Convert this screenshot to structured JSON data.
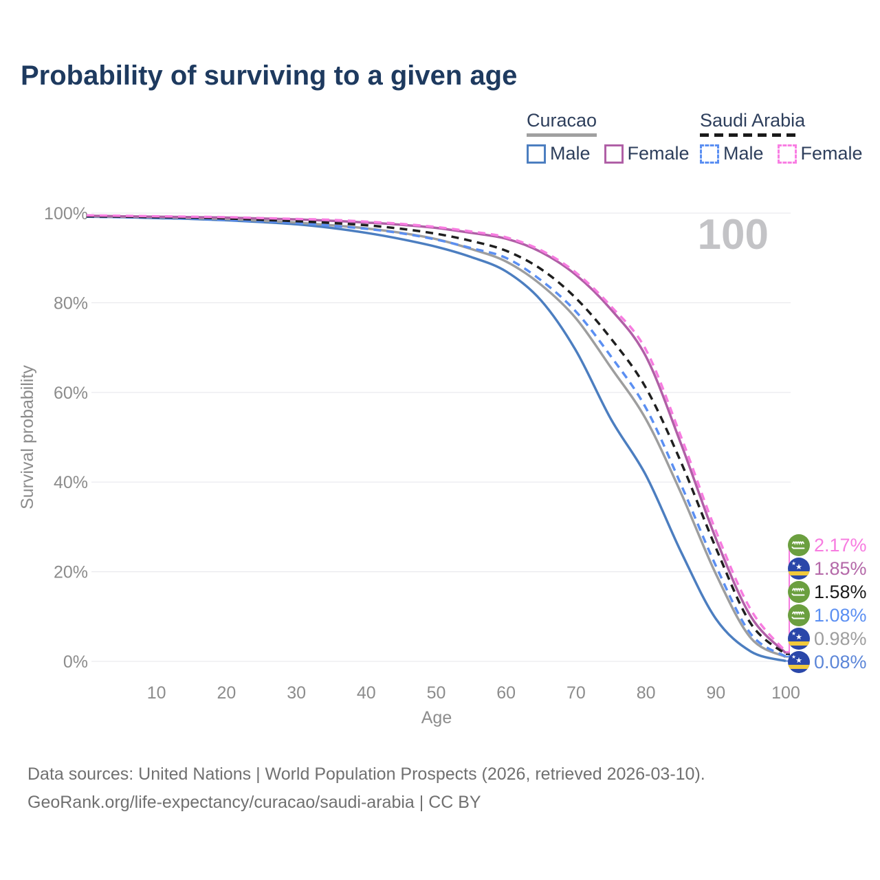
{
  "chart_data": {
    "type": "line",
    "title": "Probability of surviving to a given age",
    "xlabel": "Age",
    "ylabel": "Survival probability",
    "xlim": [
      0,
      100
    ],
    "ylim": [
      0,
      100
    ],
    "grid": "horizontal",
    "legend_position": "top-right",
    "x_ticks": [
      10,
      20,
      30,
      40,
      50,
      60,
      70,
      80,
      90,
      100
    ],
    "y_tick_values": [
      100,
      80,
      60,
      40,
      20,
      0
    ],
    "y_tick_labels": [
      "100%",
      "80%",
      "60%",
      "40%",
      "20%",
      "0%"
    ],
    "hover_age_label": "100",
    "ages": [
      0,
      5,
      10,
      15,
      20,
      25,
      30,
      35,
      40,
      45,
      50,
      55,
      60,
      65,
      70,
      75,
      80,
      85,
      90,
      95,
      100
    ],
    "draw_order": [
      5,
      4,
      1,
      3,
      2,
      0
    ],
    "series": [
      {
        "name": "Saudi Arabia Female",
        "country": "Saudi Arabia",
        "sex": "Female",
        "flag": "sa",
        "color": "#f77ce0",
        "label_color": "#f77ce0",
        "dash": true,
        "end_label": "2.17%",
        "values": [
          99.5,
          99.4,
          99.3,
          99.2,
          99.1,
          98.9,
          98.7,
          98.5,
          98.1,
          97.6,
          96.9,
          95.9,
          94.6,
          91.7,
          86.7,
          79.2,
          69.5,
          50.2,
          29.1,
          11.5,
          2.17
        ]
      },
      {
        "name": "Curacao Female",
        "country": "Curacao",
        "sex": "Female",
        "flag": "cw",
        "color": "#b05fa6",
        "label_color": "#b468a8",
        "dash": false,
        "end_label": "1.85%",
        "values": [
          99.4,
          99.3,
          99.2,
          99.1,
          99.0,
          98.8,
          98.6,
          98.3,
          97.9,
          97.4,
          96.7,
          95.6,
          94.3,
          91.3,
          86.2,
          78.5,
          68.0,
          48.6,
          27.4,
          10.0,
          1.85
        ]
      },
      {
        "name": "Saudi Arabia Both Sexes",
        "country": "Saudi Arabia",
        "sex": "Both",
        "flag": "sa",
        "color": "#1f1f1f",
        "label_color": "#1a1a1a",
        "dash": true,
        "end_label": "1.58%",
        "values": [
          99.3,
          99.2,
          99.1,
          99.0,
          98.8,
          98.5,
          98.2,
          97.8,
          97.3,
          96.5,
          95.4,
          93.8,
          91.6,
          87.5,
          81.0,
          72.0,
          61.0,
          44.5,
          25.3,
          8.4,
          1.58
        ]
      },
      {
        "name": "Saudi Arabia Male",
        "country": "Saudi Arabia",
        "sex": "Male",
        "flag": "sa",
        "color": "#5b8ff2",
        "label_color": "#5b8ff2",
        "dash": true,
        "end_label": "1.08%",
        "values": [
          99.2,
          99.1,
          99.0,
          98.8,
          98.5,
          98.2,
          97.8,
          97.2,
          96.5,
          95.5,
          94.1,
          92.2,
          90.0,
          85.0,
          78.0,
          68.0,
          56.5,
          39.5,
          21.3,
          6.1,
          1.08
        ]
      },
      {
        "name": "Curacao Both Sexes",
        "country": "Curacao",
        "sex": "Both",
        "flag": "cw",
        "color": "#9e9e9e",
        "label_color": "#9e9e9e",
        "dash": false,
        "end_label": "0.98%",
        "values": [
          99.3,
          99.2,
          99.1,
          98.9,
          98.7,
          98.3,
          97.9,
          97.3,
          96.6,
          95.6,
          94.2,
          92.0,
          89.2,
          84.0,
          76.5,
          65.5,
          54.0,
          37.6,
          19.5,
          5.2,
          0.98
        ]
      },
      {
        "name": "Curacao Male",
        "country": "Curacao",
        "sex": "Male",
        "flag": "cw",
        "color": "#4c7ec0",
        "label_color": "#5c86d8",
        "dash": false,
        "end_label": "0.08%",
        "values": [
          99.2,
          99.1,
          98.9,
          98.7,
          98.4,
          98.0,
          97.5,
          96.7,
          95.6,
          94.2,
          92.5,
          90.2,
          87.0,
          80.5,
          69.3,
          54.0,
          41.5,
          24.5,
          9.5,
          2.2,
          0.08
        ]
      }
    ]
  },
  "legend": {
    "groups": [
      {
        "title": "Curacao",
        "underline_style": "solid",
        "underline_color": "#a0a0a0",
        "items": [
          {
            "label": "Male",
            "color": "#4c7ec0",
            "dashed": false
          },
          {
            "label": "Female",
            "color": "#b05fa6",
            "dashed": false
          }
        ]
      },
      {
        "title": "Saudi Arabia",
        "underline_style": "dashed",
        "underline_color": "#1a1a1a",
        "items": [
          {
            "label": "Male",
            "color": "#5b8ff2",
            "dashed": true
          },
          {
            "label": "Female",
            "color": "#f97ee3",
            "dashed": true
          }
        ]
      }
    ]
  },
  "footer": {
    "line1": "Data sources: United Nations | World Population Prospects (2026, retrieved 2026-03-10).",
    "line2": "GeoRank.org/life-expectancy/curacao/saudi-arabia | CC BY"
  },
  "colors": {
    "title": "#1e3a5f",
    "grid": "#e9e9ed",
    "axis_text": "#8c8c8c",
    "hover_label": "#c3c3c6",
    "curacao_flag_blue": "#2a47a9",
    "curacao_flag_yellow": "#f0c93c",
    "saudi_flag_green": "#6b9f3f"
  }
}
